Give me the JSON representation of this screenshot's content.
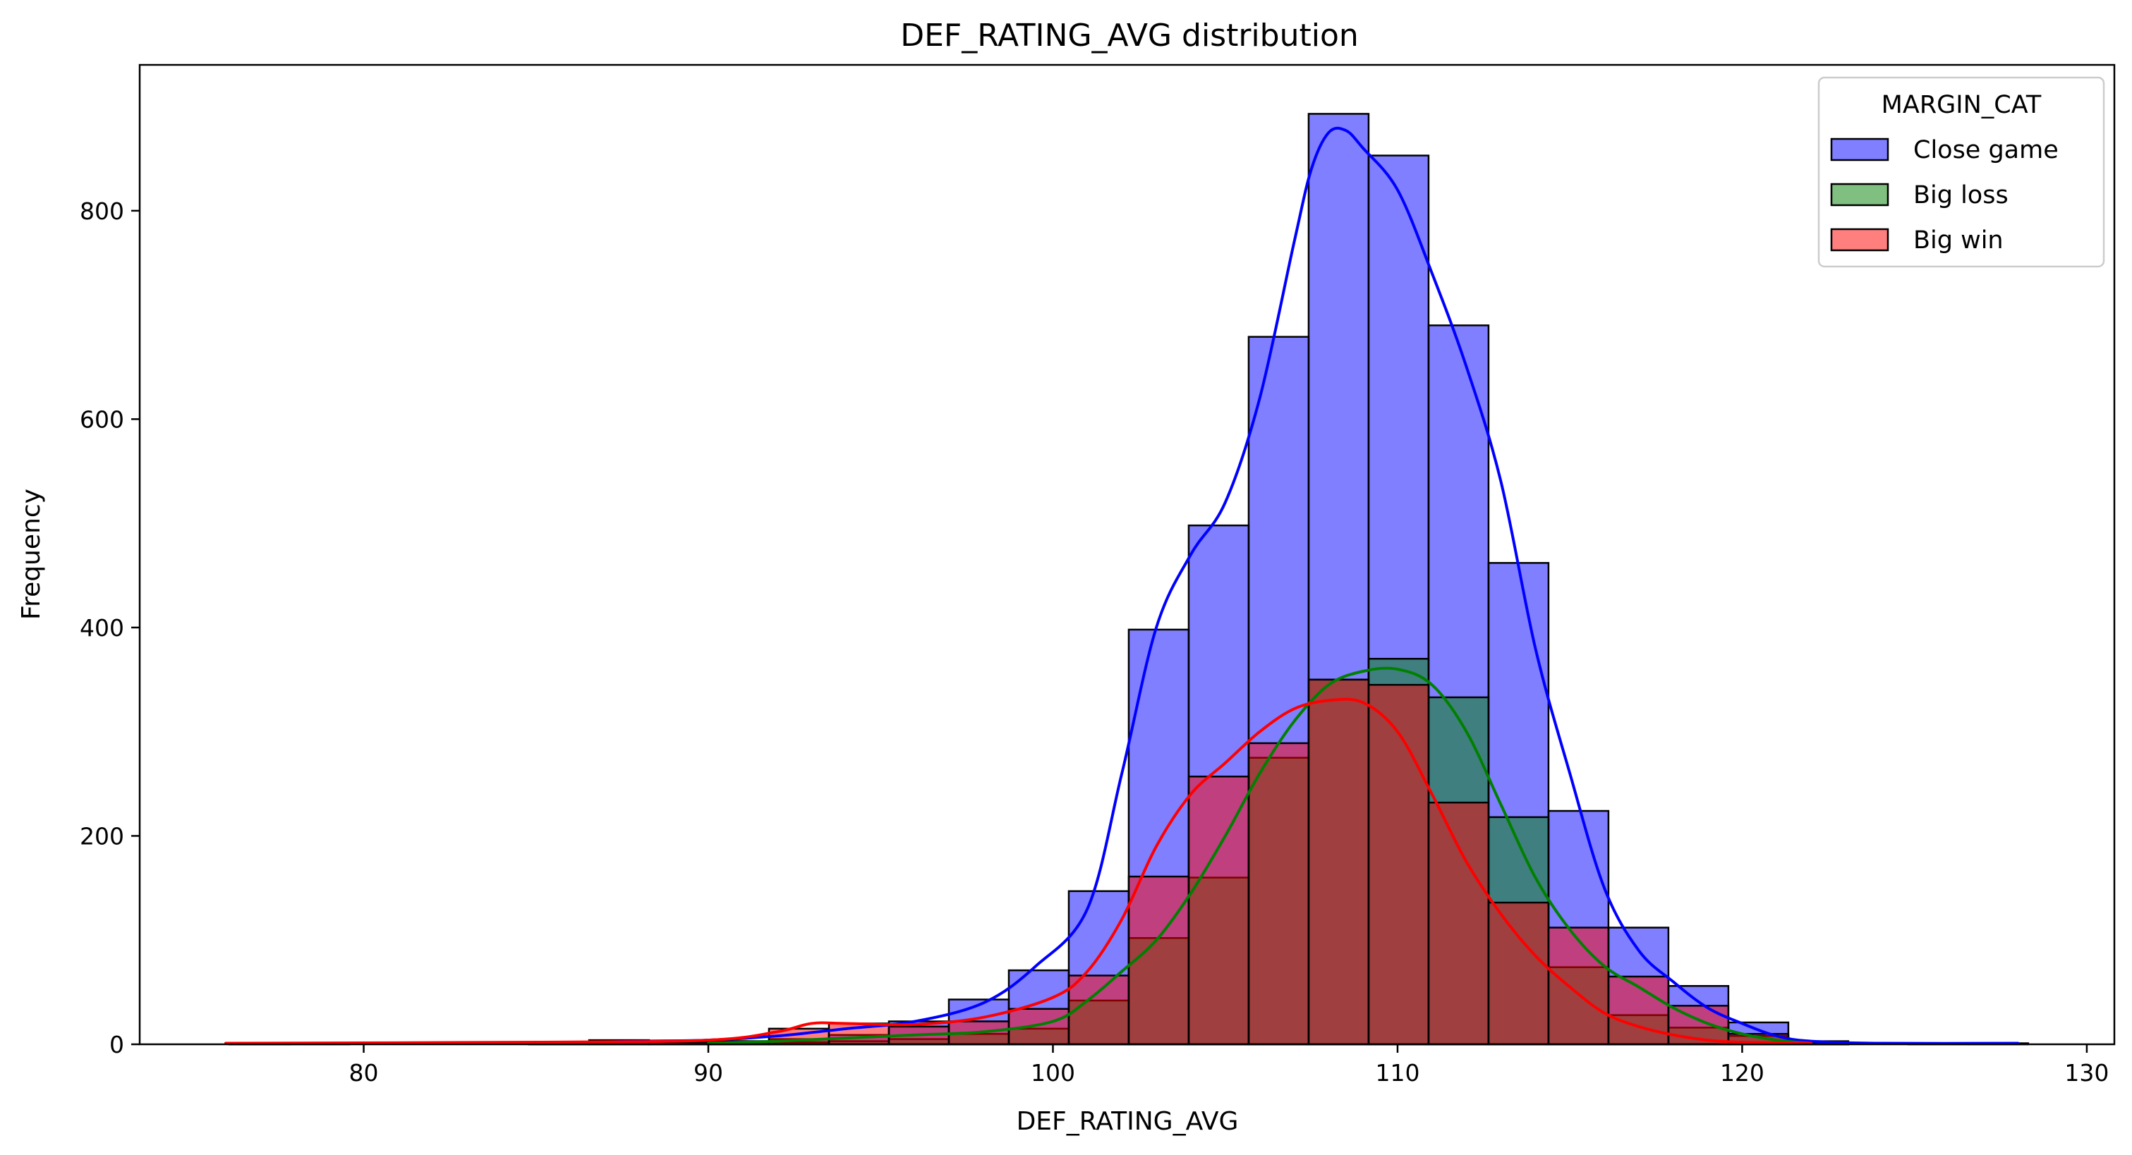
{
  "chart_data": {
    "type": "histogram",
    "title": "DEF_RATING_AVG distribution",
    "xlabel": "DEF_RATING_AVG",
    "ylabel": "Frequency",
    "xlim": [
      73.5,
      130.8
    ],
    "ylim": [
      0,
      940
    ],
    "xticks": [
      80,
      90,
      100,
      110,
      120,
      130
    ],
    "yticks": [
      0,
      200,
      400,
      600,
      800
    ],
    "legend": {
      "title": "MARGIN_CAT",
      "placement": "top-right"
    },
    "bin_edges": [
      76.1,
      77.84,
      79.58,
      81.32,
      83.06,
      84.8,
      86.54,
      88.28,
      90.02,
      91.76,
      93.5,
      95.24,
      96.98,
      98.72,
      100.46,
      102.2,
      103.94,
      105.68,
      107.42,
      109.16,
      110.9,
      112.64,
      114.38,
      116.12,
      117.86,
      119.6,
      121.34,
      123.08,
      124.82,
      126.56,
      128.3
    ],
    "series": [
      {
        "name": "Close game",
        "color": "#0000ff",
        "counts": [
          1,
          1,
          0,
          0,
          0,
          1,
          4,
          2,
          3,
          5,
          9,
          22,
          43,
          71,
          147,
          398,
          498,
          679,
          893,
          853,
          690,
          462,
          224,
          112,
          56,
          21,
          3,
          0,
          1,
          1
        ],
        "kde_x": [
          76,
          80,
          85,
          88,
          90,
          92,
          94,
          96,
          98,
          99.5,
          101,
          102,
          103,
          104,
          105,
          106,
          107,
          107.5,
          108,
          108.5,
          109,
          110,
          111,
          112,
          113,
          114,
          115,
          116,
          117,
          118,
          119,
          120,
          121,
          122,
          124,
          128
        ],
        "kde_y": [
          1,
          1,
          1,
          3,
          4,
          8,
          15,
          22,
          40,
          75,
          130,
          260,
          400,
          470,
          520,
          620,
          770,
          840,
          875,
          877,
          860,
          820,
          740,
          650,
          540,
          380,
          260,
          150,
          90,
          60,
          35,
          20,
          8,
          3,
          1,
          1
        ]
      },
      {
        "name": "Big loss",
        "color": "#008000",
        "counts": [
          0,
          0,
          0,
          0,
          0,
          0,
          0,
          0,
          1,
          2,
          3,
          5,
          10,
          15,
          42,
          102,
          160,
          275,
          350,
          370,
          333,
          218,
          74,
          28,
          16,
          8,
          1,
          0,
          0,
          0
        ],
        "kde_x": [
          90,
          92,
          94,
          96,
          98,
          100,
          101,
          102,
          103,
          104,
          105,
          106,
          107,
          108,
          109,
          110,
          111,
          112,
          113,
          114,
          115,
          116,
          117,
          118,
          119,
          120,
          121,
          122
        ],
        "kde_y": [
          1,
          3,
          6,
          9,
          12,
          22,
          42,
          70,
          100,
          145,
          200,
          260,
          310,
          345,
          358,
          360,
          345,
          300,
          230,
          160,
          110,
          75,
          55,
          35,
          20,
          10,
          4,
          1
        ]
      },
      {
        "name": "Big win",
        "color": "#ff0000",
        "counts": [
          1,
          0,
          0,
          0,
          0,
          1,
          2,
          2,
          3,
          15,
          20,
          17,
          22,
          34,
          66,
          161,
          257,
          289,
          350,
          345,
          232,
          136,
          112,
          65,
          37,
          10,
          1,
          0,
          0,
          0
        ],
        "kde_x": [
          76,
          85,
          90,
          92,
          93,
          94,
          96,
          98,
          100,
          101,
          102,
          103,
          104,
          105,
          106,
          107,
          108,
          109,
          110,
          111,
          112,
          113,
          114,
          115,
          116,
          117,
          118,
          119,
          120,
          122
        ],
        "kde_y": [
          1,
          2,
          4,
          12,
          20,
          20,
          19,
          26,
          45,
          70,
          120,
          190,
          240,
          270,
          300,
          322,
          330,
          328,
          300,
          240,
          175,
          125,
          85,
          55,
          30,
          17,
          9,
          4,
          2,
          1
        ]
      }
    ]
  }
}
